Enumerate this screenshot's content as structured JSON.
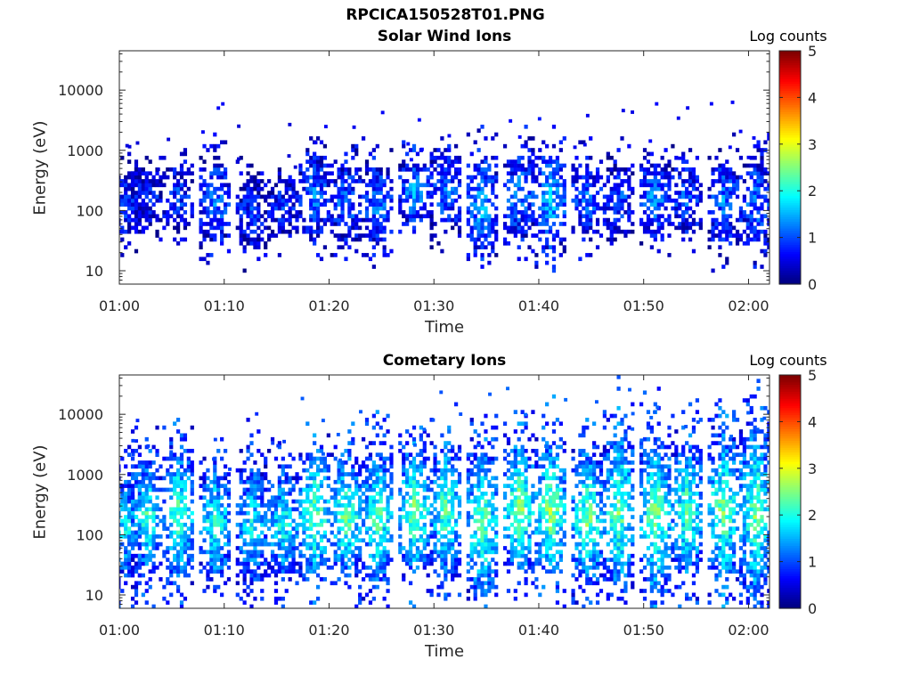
{
  "figure": {
    "title": "RPCICA150528T01.PNG"
  },
  "chart_data": [
    {
      "type": "heatmap",
      "title": "Solar Wind Ions",
      "xlabel": "Time",
      "ylabel": "Energy (eV)",
      "x_ticks": [
        "01:00",
        "01:10",
        "01:20",
        "01:30",
        "01:40",
        "01:50",
        "02:00"
      ],
      "x_range": [
        "01:00",
        "02:02"
      ],
      "y_scale": "log",
      "y_ticks": [
        10,
        100,
        1000,
        10000
      ],
      "y_tick_labels": [
        "10",
        "100",
        "1000",
        "10000"
      ],
      "ylim": [
        6,
        45000
      ],
      "colorbar": {
        "label": "Log counts",
        "range": [
          0,
          5
        ],
        "ticks": [
          "0",
          "1",
          "2",
          "3",
          "4",
          "5"
        ],
        "colormap": "jet"
      },
      "bursts": [
        {
          "t": 0.5,
          "e_low": 40,
          "e_high": 400,
          "level": 0.9
        },
        {
          "t": 2.5,
          "e_low": 60,
          "e_high": 400,
          "level": 0.8
        },
        {
          "t": 5.5,
          "e_low": 50,
          "e_high": 500,
          "level": 0.9
        },
        {
          "t": 9.0,
          "e_low": 30,
          "e_high": 600,
          "level": 1.2
        },
        {
          "t": 12.5,
          "e_low": 25,
          "e_high": 300,
          "level": 0.8
        },
        {
          "t": 15.5,
          "e_low": 40,
          "e_high": 300,
          "level": 0.8
        },
        {
          "t": 18.5,
          "e_low": 40,
          "e_high": 700,
          "level": 1.2
        },
        {
          "t": 21.5,
          "e_low": 30,
          "e_high": 500,
          "level": 1.1
        },
        {
          "t": 24.5,
          "e_low": 30,
          "e_high": 500,
          "level": 1.2
        },
        {
          "t": 28.0,
          "e_low": 60,
          "e_high": 600,
          "level": 1.4
        },
        {
          "t": 31.0,
          "e_low": 50,
          "e_high": 700,
          "level": 1.2
        },
        {
          "t": 34.5,
          "e_low": 20,
          "e_high": 600,
          "level": 1.5
        },
        {
          "t": 38.0,
          "e_low": 40,
          "e_high": 700,
          "level": 1.3
        },
        {
          "t": 41.0,
          "e_low": 30,
          "e_high": 700,
          "level": 1.6
        },
        {
          "t": 44.5,
          "e_low": 40,
          "e_high": 500,
          "level": 1.1
        },
        {
          "t": 47.5,
          "e_low": 40,
          "e_high": 500,
          "level": 1.0
        },
        {
          "t": 51.0,
          "e_low": 40,
          "e_high": 600,
          "level": 1.3
        },
        {
          "t": 54.0,
          "e_low": 40,
          "e_high": 500,
          "level": 1.1
        },
        {
          "t": 57.5,
          "e_low": 30,
          "e_high": 600,
          "level": 1.2
        },
        {
          "t": 60.5,
          "e_low": 30,
          "e_high": 600,
          "level": 1.2
        }
      ]
    },
    {
      "type": "heatmap",
      "title": "Cometary Ions",
      "xlabel": "Time",
      "ylabel": "Energy (eV)",
      "x_ticks": [
        "01:00",
        "01:10",
        "01:20",
        "01:30",
        "01:40",
        "01:50",
        "02:00"
      ],
      "x_range": [
        "01:00",
        "02:02"
      ],
      "y_scale": "log",
      "y_ticks": [
        10,
        100,
        1000,
        10000
      ],
      "y_tick_labels": [
        "10",
        "100",
        "1000",
        "10000"
      ],
      "ylim": [
        6,
        45000
      ],
      "colorbar": {
        "label": "Log counts",
        "range": [
          0,
          5
        ],
        "ticks": [
          "0",
          "1",
          "2",
          "3",
          "4",
          "5"
        ],
        "colormap": "jet"
      },
      "bursts": [
        {
          "t": 0.5,
          "e_low": 20,
          "e_high": 800,
          "level": 1.8
        },
        {
          "t": 2.5,
          "e_low": 25,
          "e_high": 1500,
          "level": 2.1
        },
        {
          "t": 5.5,
          "e_low": 20,
          "e_high": 2000,
          "level": 2.3
        },
        {
          "t": 9.0,
          "e_low": 20,
          "e_high": 1000,
          "level": 2.1
        },
        {
          "t": 12.5,
          "e_low": 15,
          "e_high": 1200,
          "level": 1.8
        },
        {
          "t": 15.5,
          "e_low": 20,
          "e_high": 900,
          "level": 2.0
        },
        {
          "t": 18.5,
          "e_low": 20,
          "e_high": 2000,
          "level": 2.4
        },
        {
          "t": 21.5,
          "e_low": 25,
          "e_high": 1500,
          "level": 2.4
        },
        {
          "t": 24.5,
          "e_low": 15,
          "e_high": 2000,
          "level": 2.3
        },
        {
          "t": 28.0,
          "e_low": 25,
          "e_high": 2000,
          "level": 2.5
        },
        {
          "t": 31.0,
          "e_low": 25,
          "e_high": 2500,
          "level": 2.3
        },
        {
          "t": 34.5,
          "e_low": 10,
          "e_high": 2000,
          "level": 2.4
        },
        {
          "t": 38.0,
          "e_low": 25,
          "e_high": 2500,
          "level": 2.6
        },
        {
          "t": 41.0,
          "e_low": 20,
          "e_high": 2500,
          "level": 2.6
        },
        {
          "t": 44.5,
          "e_low": 15,
          "e_high": 2000,
          "level": 2.4
        },
        {
          "t": 47.5,
          "e_low": 15,
          "e_high": 4000,
          "level": 2.4
        },
        {
          "t": 51.0,
          "e_low": 10,
          "e_high": 3000,
          "level": 2.5
        },
        {
          "t": 54.0,
          "e_low": 20,
          "e_high": 2500,
          "level": 2.3
        },
        {
          "t": 57.5,
          "e_low": 20,
          "e_high": 3000,
          "level": 2.5
        },
        {
          "t": 60.5,
          "e_low": 10,
          "e_high": 5000,
          "level": 2.4
        }
      ]
    }
  ]
}
